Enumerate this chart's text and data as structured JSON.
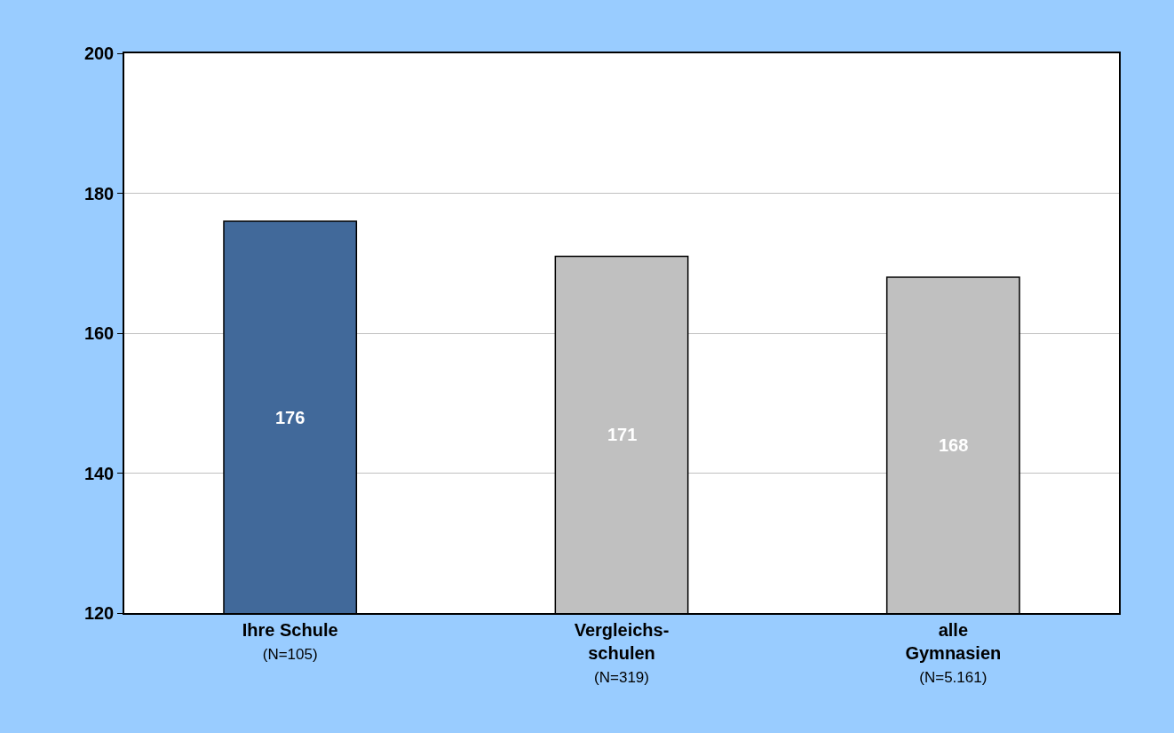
{
  "chart_data": {
    "type": "bar",
    "categories": [
      "Ihre Schule\n(N=105)",
      "Vergleichs-\nschulen\n(N=319)",
      "alle\nGymnasien\n(N=5.161)"
    ],
    "values": [
      176,
      171,
      168
    ],
    "colors": [
      "#41699a",
      "#c0c0c0",
      "#c0c0c0"
    ],
    "ylim": [
      120,
      200
    ],
    "yticks": [
      120,
      140,
      160,
      180,
      200
    ],
    "grid": "y",
    "data_labels": true
  }
}
